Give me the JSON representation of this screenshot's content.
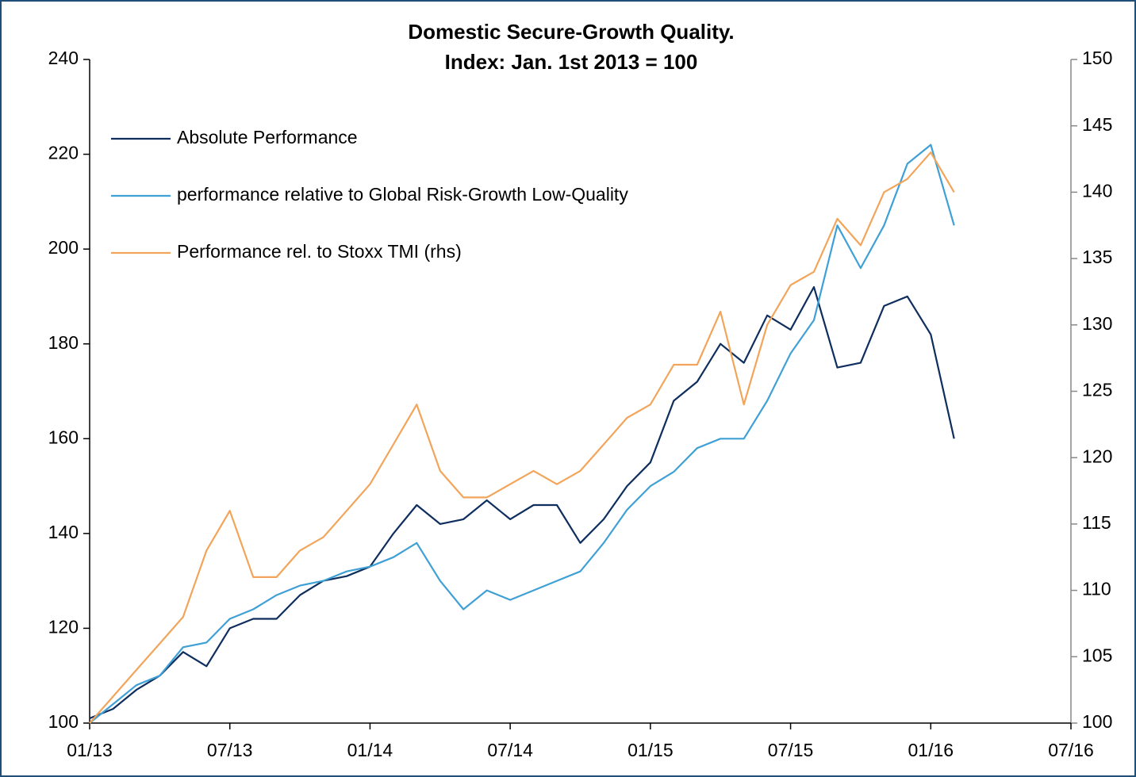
{
  "chart_data": {
    "type": "line",
    "title": "Domestic Secure-Growth Quality.",
    "subtitle": "Index: Jan. 1st 2013 = 100",
    "x": [
      "2013-01",
      "2013-02",
      "2013-03",
      "2013-04",
      "2013-05",
      "2013-06",
      "2013-07",
      "2013-08",
      "2013-09",
      "2013-10",
      "2013-11",
      "2013-12",
      "2014-01",
      "2014-02",
      "2014-03",
      "2014-04",
      "2014-05",
      "2014-06",
      "2014-07",
      "2014-08",
      "2014-09",
      "2014-10",
      "2014-11",
      "2014-12",
      "2015-01",
      "2015-02",
      "2015-03",
      "2015-04",
      "2015-05",
      "2015-06",
      "2015-07",
      "2015-08",
      "2015-09",
      "2015-10",
      "2015-11",
      "2015-12",
      "2016-01",
      "2016-02"
    ],
    "series": [
      {
        "name": "Absolute Performance",
        "color": "#0e2e5e",
        "values": [
          101,
          103,
          107,
          110,
          115,
          112,
          120,
          122,
          122,
          127,
          130,
          131,
          133,
          140,
          146,
          142,
          143,
          147,
          143,
          146,
          146,
          138,
          143,
          150,
          155,
          168,
          172,
          180,
          176,
          186,
          183,
          192,
          175,
          176,
          188,
          190,
          182,
          160
        ]
      },
      {
        "name": "performance relative to Global Risk-Growth Low-Quality",
        "color": "#3fa0d6",
        "values": [
          100,
          104,
          108,
          110,
          116,
          117,
          122,
          124,
          127,
          129,
          130,
          132,
          133,
          135,
          138,
          130,
          124,
          128,
          126,
          128,
          130,
          132,
          138,
          145,
          150,
          153,
          158,
          160,
          160,
          168,
          178,
          185,
          205,
          196,
          205,
          218,
          222,
          205
        ]
      },
      {
        "name": "Performance rel. to Stoxx TMI (rhs)",
        "color": "#f2a55a",
        "axis": "y2",
        "values": [
          100,
          102,
          104,
          106,
          108,
          113,
          116,
          111,
          111,
          113,
          114,
          116,
          118,
          121,
          124,
          119,
          117,
          117,
          118,
          119,
          118,
          119,
          121,
          123,
          124,
          127,
          127,
          131,
          124,
          130,
          133,
          134,
          138,
          136,
          140,
          141,
          143,
          140
        ]
      }
    ],
    "xlim": [
      "2013-01",
      "2016-07"
    ],
    "xticks": [
      {
        "value": "2013-01",
        "label": "01/13"
      },
      {
        "value": "2013-07",
        "label": "07/13"
      },
      {
        "value": "2014-01",
        "label": "01/14"
      },
      {
        "value": "2014-07",
        "label": "07/14"
      },
      {
        "value": "2015-01",
        "label": "01/15"
      },
      {
        "value": "2015-07",
        "label": "07/15"
      },
      {
        "value": "2016-01",
        "label": "01/16"
      },
      {
        "value": "2016-07",
        "label": "07/16"
      }
    ],
    "ylim": [
      100,
      240
    ],
    "yticks": [
      100,
      120,
      140,
      160,
      180,
      200,
      220,
      240
    ],
    "y2lim": [
      100,
      150
    ],
    "y2ticks": [
      100,
      105,
      110,
      115,
      120,
      125,
      130,
      135,
      140,
      145,
      150
    ],
    "legend": "upper left"
  }
}
